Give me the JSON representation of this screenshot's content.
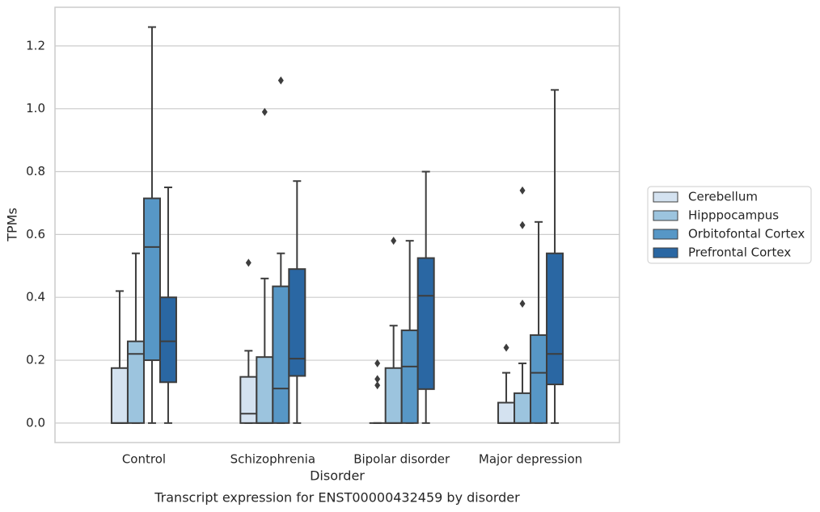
{
  "chart_data": {
    "type": "box",
    "title": "Transcript expression for ENST00000432459 by disorder",
    "x_label": "Disorder",
    "y_label": "TPMs",
    "categories": [
      "Control",
      "Schizophrenia",
      "Bipolar disorder",
      "Major depression"
    ],
    "ylim": [
      -0.062,
      1.323
    ],
    "yticks": [
      {
        "value": 0,
        "label": "0.0"
      },
      0.2,
      0.4,
      0.6,
      0.8,
      {
        "value": 1,
        "label": "1.0"
      },
      1.2
    ],
    "grid": true,
    "legend": "right",
    "series": [
      {
        "name": "Cerebellum",
        "color": "#d4e2f0",
        "min": [
          0,
          0,
          0,
          0
        ],
        "q1": [
          0,
          0,
          0,
          0
        ],
        "median": [
          0,
          0.03,
          0,
          0
        ],
        "q3": [
          0.175,
          0.147,
          0,
          0.065
        ],
        "max": [
          0.42,
          0.23,
          0,
          0.16
        ],
        "outliers": [
          [],
          [
            0.51
          ],
          [
            0.19,
            0.14,
            0.12
          ],
          [
            0.24
          ]
        ]
      },
      {
        "name": "Hipppocampus",
        "color": "#9cc4de",
        "min": [
          0,
          0,
          0,
          0
        ],
        "q1": [
          0,
          0,
          0,
          0
        ],
        "median": [
          0.22,
          0,
          0,
          0
        ],
        "q3": [
          0.26,
          0.21,
          0.175,
          0.095
        ],
        "max": [
          0.54,
          0.46,
          0.31,
          0.19
        ],
        "outliers": [
          [],
          [
            0.99
          ],
          [
            0.58
          ],
          [
            0.74,
            0.63,
            0.38
          ]
        ]
      },
      {
        "name": "Orbitofontal Cortex",
        "color": "#5797c6",
        "min": [
          0,
          0,
          0,
          0
        ],
        "q1": [
          0.2,
          0,
          0,
          0
        ],
        "median": [
          0.56,
          0.11,
          0.18,
          0.16
        ],
        "q3": [
          0.715,
          0.435,
          0.295,
          0.28
        ],
        "max": [
          1.26,
          0.54,
          0.58,
          0.64
        ],
        "outliers": [
          [],
          [
            1.09
          ],
          [],
          []
        ]
      },
      {
        "name": "Prefrontal Cortex",
        "color": "#2a67a3",
        "min": [
          0,
          0,
          0,
          0
        ],
        "q1": [
          0.13,
          0.15,
          0.108,
          0.123
        ],
        "median": [
          0.26,
          0.205,
          0.405,
          0.22
        ],
        "q3": [
          0.4,
          0.49,
          0.525,
          0.54
        ],
        "max": [
          0.75,
          0.77,
          0.8,
          1.06
        ],
        "outliers": [
          [],
          [],
          [],
          []
        ]
      }
    ]
  }
}
